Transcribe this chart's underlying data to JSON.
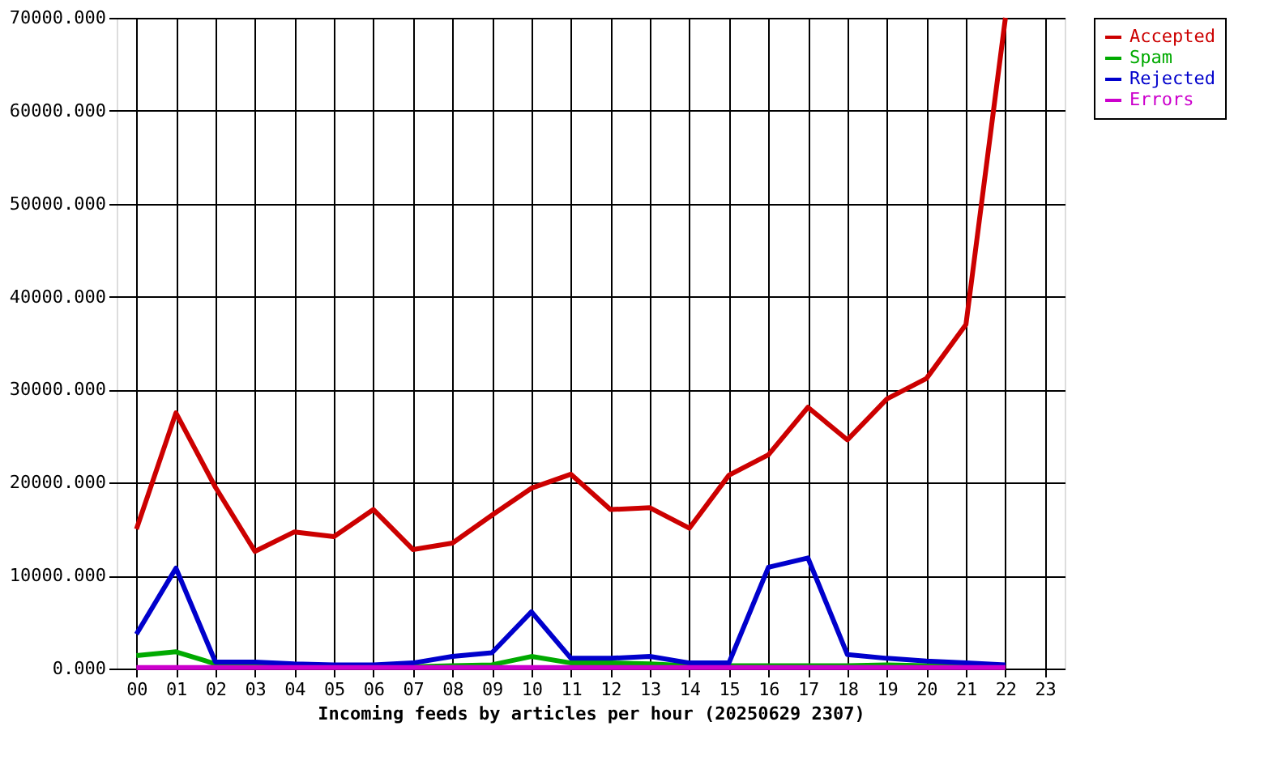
{
  "chart_data": {
    "type": "line",
    "xlabel": "Incoming feeds by articles per hour (20250629 2307)",
    "categories": [
      "00",
      "01",
      "02",
      "03",
      "04",
      "05",
      "06",
      "07",
      "08",
      "09",
      "10",
      "11",
      "12",
      "13",
      "14",
      "15",
      "16",
      "17",
      "18",
      "19",
      "20",
      "21",
      "22",
      "23"
    ],
    "ylim": [
      0,
      70000
    ],
    "yticks": [
      {
        "value": 0,
        "label": "0.000"
      },
      {
        "value": 10000,
        "label": "10000.000"
      },
      {
        "value": 20000,
        "label": "20000.000"
      },
      {
        "value": 30000,
        "label": "30000.000"
      },
      {
        "value": 40000,
        "label": "40000.000"
      },
      {
        "value": 50000,
        "label": "50000.000"
      },
      {
        "value": 60000,
        "label": "60000.000"
      },
      {
        "value": 70000,
        "label": "70000.000"
      }
    ],
    "grid": true,
    "legend": "top right",
    "line_style": "solid",
    "series": [
      {
        "name": "Accepted",
        "color": "#cc0000",
        "values": [
          15000,
          27500,
          19500,
          12600,
          14700,
          14200,
          17100,
          12800,
          13500,
          16500,
          19400,
          20900,
          17100,
          17300,
          15100,
          20800,
          23000,
          28100,
          24600,
          29000,
          31200,
          37000,
          70000,
          null
        ]
      },
      {
        "name": "Spam",
        "color": "#00aa00",
        "values": [
          1400,
          1800,
          500,
          300,
          200,
          200,
          200,
          200,
          300,
          400,
          1300,
          600,
          600,
          500,
          300,
          300,
          300,
          300,
          300,
          400,
          300,
          300,
          300,
          null
        ]
      },
      {
        "name": "Rejected",
        "color": "#0000cc",
        "values": [
          3700,
          10800,
          700,
          700,
          500,
          400,
          400,
          600,
          1300,
          1700,
          6100,
          1100,
          1100,
          1300,
          600,
          600,
          10900,
          11900,
          1500,
          1100,
          800,
          600,
          400,
          null
        ]
      },
      {
        "name": "Errors",
        "color": "#cc00cc",
        "values": [
          100,
          100,
          100,
          100,
          100,
          100,
          100,
          100,
          100,
          100,
          100,
          100,
          100,
          100,
          100,
          100,
          100,
          100,
          100,
          100,
          100,
          100,
          100,
          null
        ]
      }
    ]
  }
}
